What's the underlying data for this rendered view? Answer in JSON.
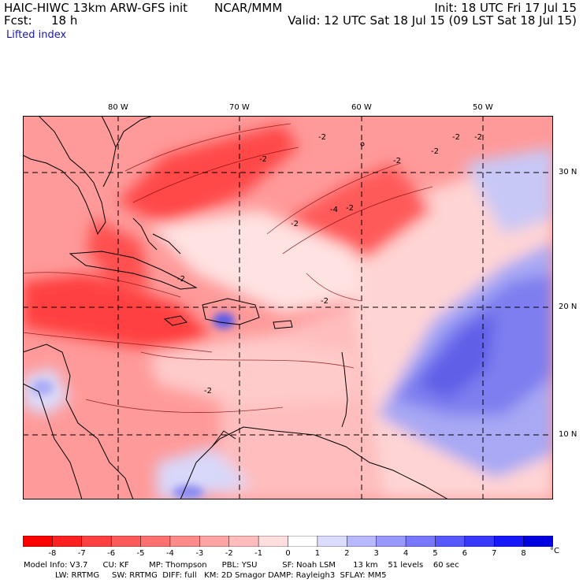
{
  "header": {
    "model": "HAIC-HIWC 13km ARW-GFS init",
    "center": "NCAR/MMM",
    "init": "Init: 18 UTC Fri 17 Jul 15",
    "fcst_label": "Fcst:",
    "fcst_value": "18 h",
    "valid": "Valid: 12 UTC Sat 18 Jul 15 (09 LST Sat 18 Jul 15)",
    "field": "Lifted index"
  },
  "map": {
    "longitude_labels": [
      "80 W",
      "70 W",
      "60 W",
      "50 W"
    ],
    "latitude_labels": [
      "30 N",
      "20 N",
      "10 N"
    ],
    "contour_labels": [
      "-2",
      "-2",
      "-2",
      "-2",
      "-2",
      "-2",
      "-2",
      "-2",
      "-4",
      "-2",
      "-2",
      "-2"
    ],
    "colors": {
      "strong_negative": "#ff3030",
      "moderate_negative": "#ff8080",
      "weak_negative": "#ffc8c8",
      "neutral": "#fff4f4",
      "positive": "#7f7ff0",
      "strong_positive": "#4848e8",
      "land_line": "#000000"
    }
  },
  "colorbar": {
    "ticks": [
      "-8",
      "-7",
      "-6",
      "-5",
      "-4",
      "-3",
      "-2",
      "-1",
      "0",
      "1",
      "2",
      "3",
      "4",
      "5",
      "6",
      "7",
      "8"
    ],
    "unit": "°C",
    "colors": [
      "#ff0000",
      "#ff2020",
      "#ff4040",
      "#ff5a5a",
      "#ff7070",
      "#ff8a8a",
      "#ffa4a4",
      "#ffbcbc",
      "#ffdede",
      "#ffffff",
      "#dcdcff",
      "#b8b8ff",
      "#9898ff",
      "#7878ff",
      "#5858ff",
      "#3838ff",
      "#1818ff",
      "#0000e0"
    ]
  },
  "model_info": {
    "line1": "Model Info: V3.7      CU: KF        MP: Thompson      PBL: YSU          SF: Noah LSM       13 km    51 levels    60 sec",
    "line2": "LW: RRTMG     SW: RRTMG  DIFF: full   KM: 2D Smagor DAMP: Rayleigh3  SFLAY: MM5"
  }
}
